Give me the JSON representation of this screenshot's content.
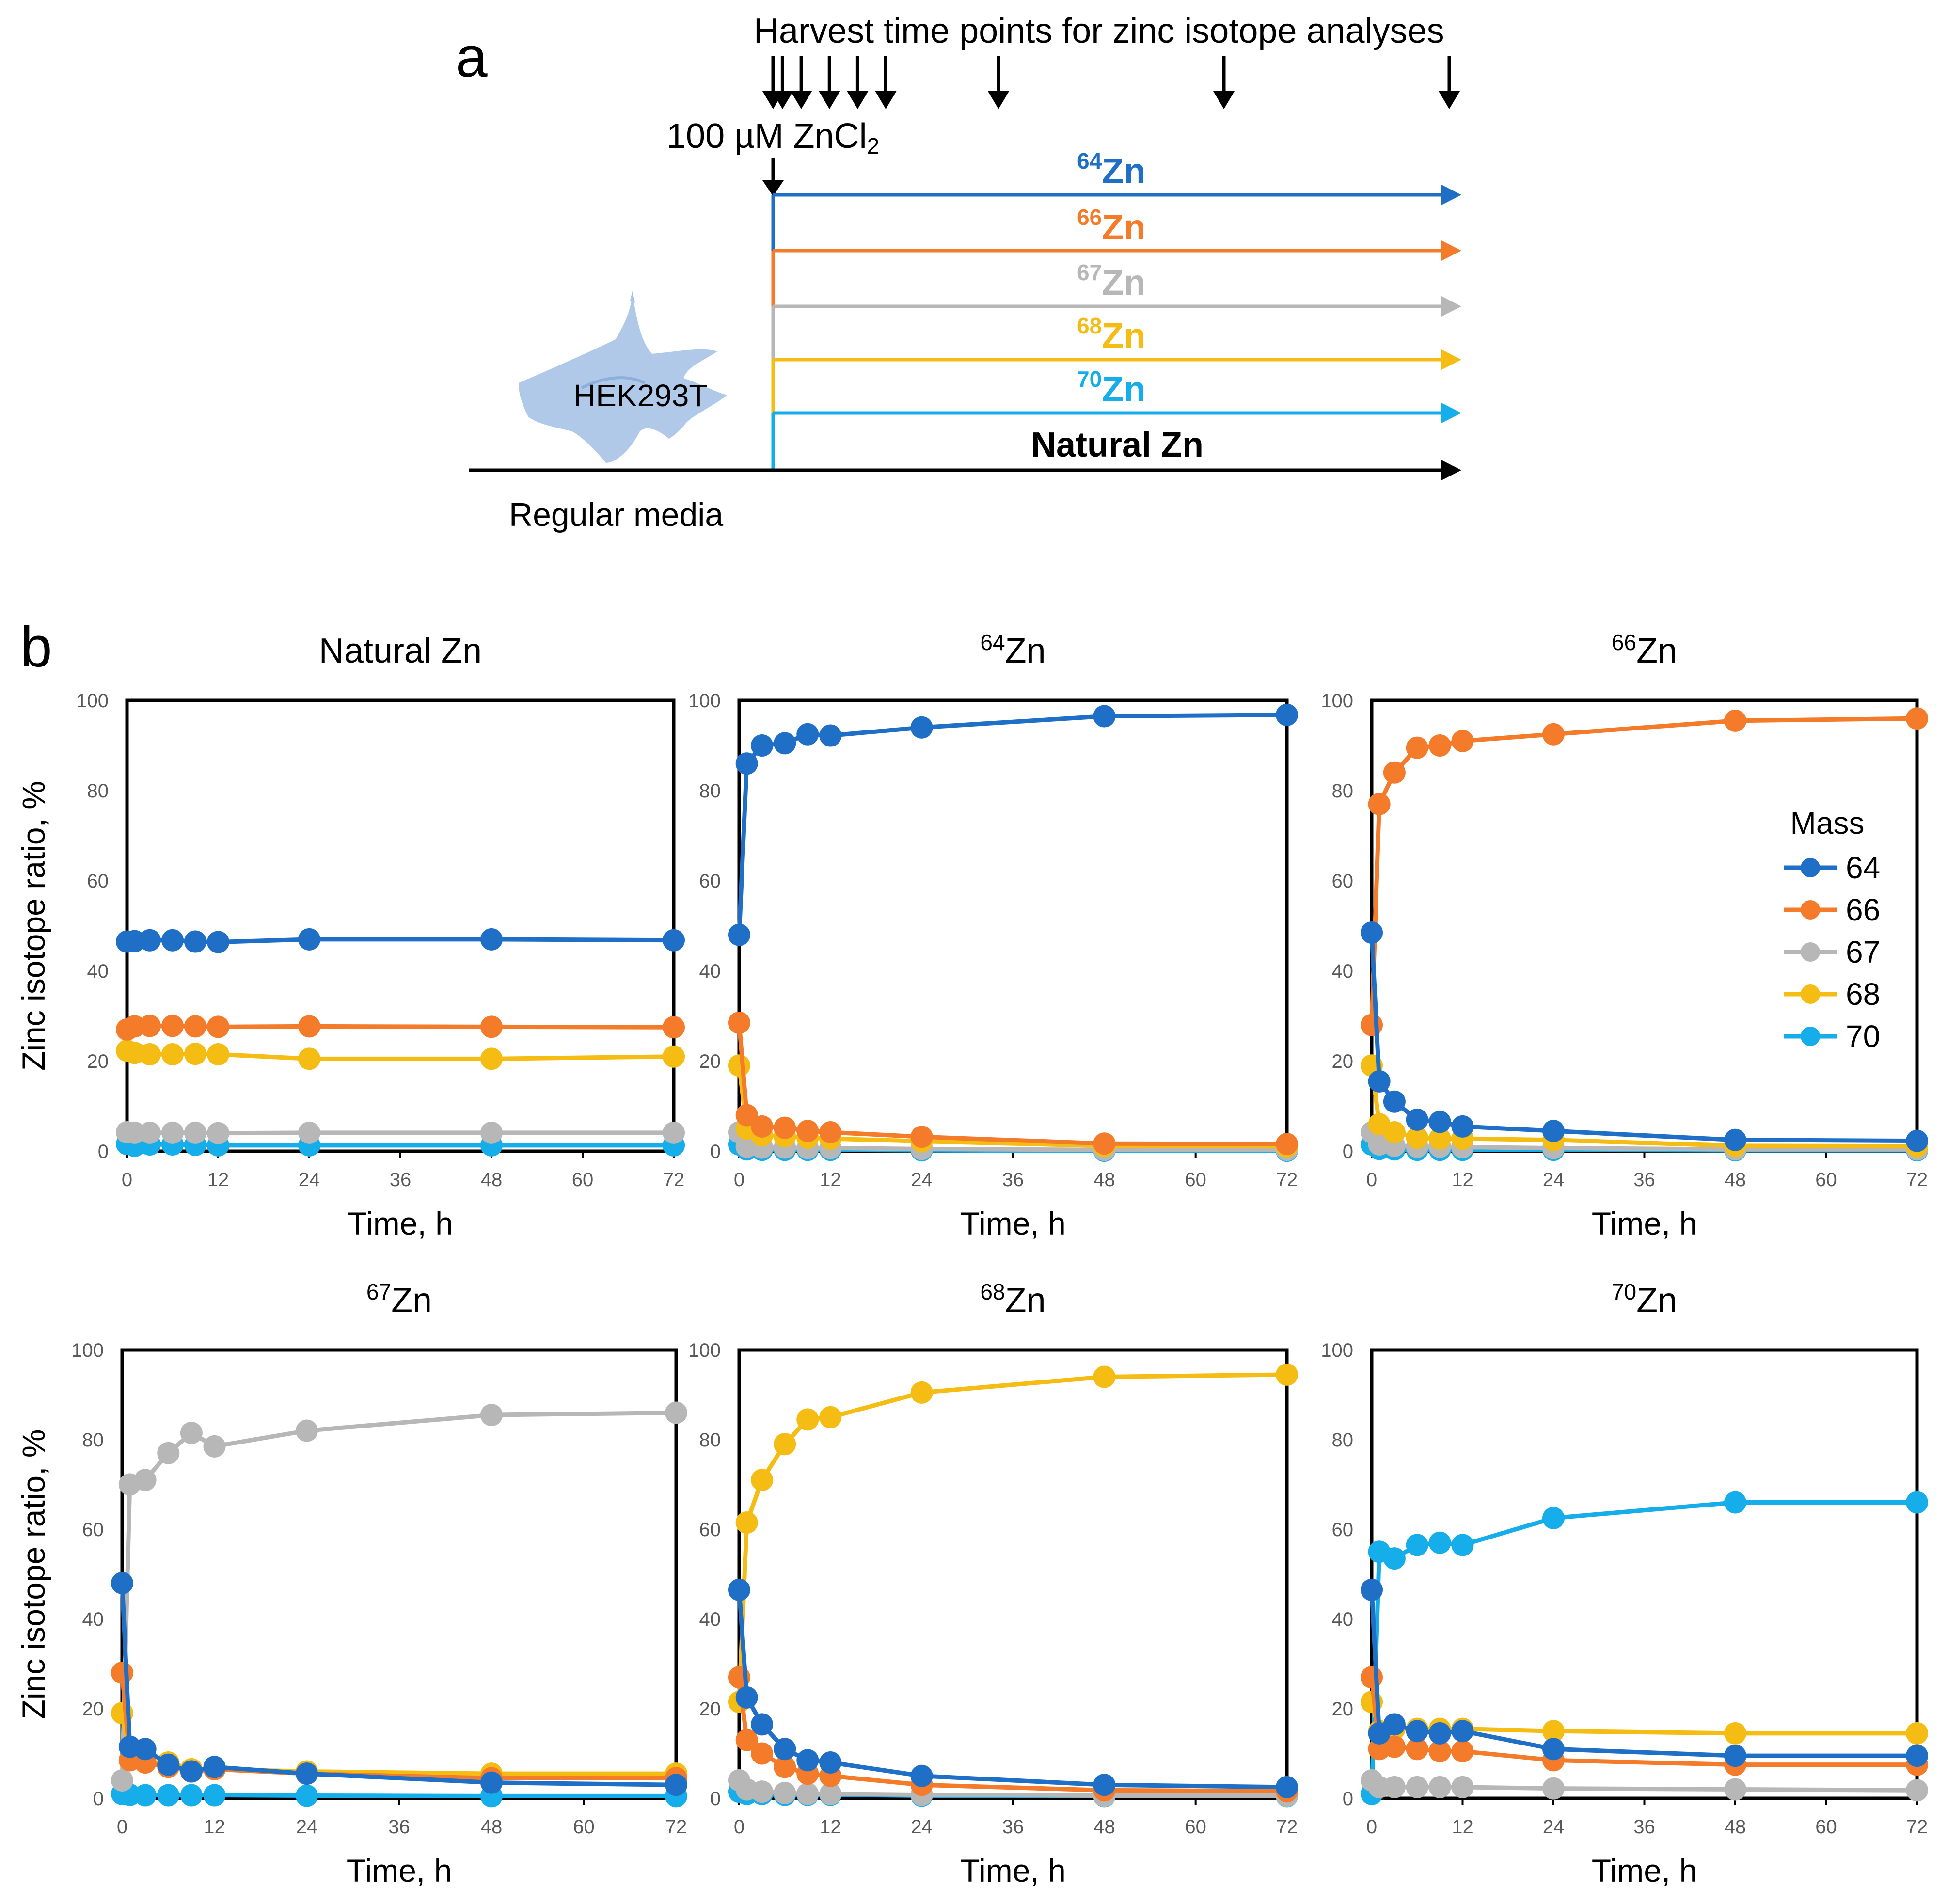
{
  "panel_a": {
    "letter": "a",
    "harvest_title": "Harvest time points for zinc isotope analyses",
    "treatment_label": "100 µM ZnCl",
    "treatment_sub": "2",
    "cell_label": "HEK293T",
    "media_label": "Regular media",
    "harvest_times_h": [
      0,
      1,
      3,
      6,
      9,
      12,
      24,
      48,
      72
    ],
    "arrows": [
      {
        "mass": "64",
        "element": "Zn",
        "color": "#1F6FC6"
      },
      {
        "mass": "66",
        "element": "Zn",
        "color": "#F47B2A"
      },
      {
        "mass": "67",
        "element": "Zn",
        "color": "#B7B7B7"
      },
      {
        "mass": "68",
        "element": "Zn",
        "color": "#F5BC14"
      },
      {
        "mass": "70",
        "element": "Zn",
        "color": "#16AEEA"
      }
    ],
    "natural_label": "Natural Zn",
    "natural_color": "#000000"
  },
  "panel_b": {
    "letter": "b",
    "legend": {
      "title": "Mass",
      "entries": [
        {
          "key": "64",
          "label": "64",
          "color": "#1F6FC6"
        },
        {
          "key": "66",
          "label": "66",
          "color": "#F47B2A"
        },
        {
          "key": "67",
          "label": "67",
          "color": "#B7B7B7"
        },
        {
          "key": "68",
          "label": "68",
          "color": "#F5BC14"
        },
        {
          "key": "70",
          "label": "70",
          "color": "#16AEEA"
        }
      ]
    }
  },
  "chart_data": [
    {
      "type": "line",
      "id": "natural",
      "title": "Natural Zn",
      "title_sup": "",
      "title_main": "Natural Zn",
      "xlabel": "Time, h",
      "ylabel": "Zinc isotope ratio, %",
      "xlim": [
        0,
        72
      ],
      "ylim": [
        0,
        100
      ],
      "xticks": [
        0,
        12,
        24,
        36,
        48,
        60,
        72
      ],
      "yticks": [
        0,
        20,
        40,
        60,
        80,
        100
      ],
      "x": [
        0,
        1,
        3,
        6,
        9,
        12,
        24,
        48,
        72
      ],
      "series": [
        {
          "name": "64",
          "values": [
            46.5,
            46.6,
            46.8,
            46.8,
            46.5,
            46.4,
            47.0,
            47.0,
            46.8
          ]
        },
        {
          "name": "66",
          "values": [
            27.0,
            27.7,
            27.8,
            27.8,
            27.7,
            27.6,
            27.7,
            27.6,
            27.5
          ]
        },
        {
          "name": "67",
          "values": [
            4.2,
            4.1,
            4.1,
            4.1,
            4.1,
            4.0,
            4.1,
            4.1,
            4.1
          ]
        },
        {
          "name": "68",
          "values": [
            22.3,
            21.8,
            21.5,
            21.5,
            21.6,
            21.5,
            20.5,
            20.5,
            21.0
          ]
        },
        {
          "name": "70",
          "values": [
            1.6,
            1.2,
            1.5,
            1.5,
            1.4,
            1.3,
            1.3,
            1.3,
            1.3
          ]
        }
      ]
    },
    {
      "type": "line",
      "id": "zn64",
      "title": "64Zn",
      "title_sup": "64",
      "title_main": "Zn",
      "xlabel": "Time, h",
      "ylabel": "Zinc isotope ratio, %",
      "xlim": [
        0,
        72
      ],
      "ylim": [
        0,
        100
      ],
      "xticks": [
        0,
        12,
        24,
        36,
        48,
        60,
        72
      ],
      "yticks": [
        0,
        20,
        40,
        60,
        80,
        100
      ],
      "x": [
        0,
        1,
        3,
        6,
        9,
        12,
        24,
        48,
        72
      ],
      "series": [
        {
          "name": "64",
          "values": [
            48.0,
            86.0,
            90.0,
            90.5,
            92.5,
            92.2,
            94.0,
            96.5,
            96.8
          ]
        },
        {
          "name": "66",
          "values": [
            28.5,
            8.0,
            5.5,
            5.2,
            4.5,
            4.2,
            3.2,
            1.7,
            1.6
          ]
        },
        {
          "name": "67",
          "values": [
            4.2,
            1.0,
            0.8,
            0.8,
            0.7,
            0.7,
            0.5,
            0.3,
            0.3
          ]
        },
        {
          "name": "68",
          "values": [
            19.0,
            5.0,
            3.5,
            3.3,
            3.0,
            2.8,
            2.2,
            1.2,
            1.1
          ]
        },
        {
          "name": "70",
          "values": [
            1.5,
            0.4,
            0.3,
            0.3,
            0.3,
            0.3,
            0.2,
            0.1,
            0.1
          ]
        }
      ]
    },
    {
      "type": "line",
      "id": "zn66",
      "title": "66Zn",
      "title_sup": "66",
      "title_main": "Zn",
      "xlabel": "Time, h",
      "ylabel": "Zinc isotope ratio, %",
      "xlim": [
        0,
        72
      ],
      "ylim": [
        0,
        100
      ],
      "xticks": [
        0,
        12,
        24,
        36,
        48,
        60,
        72
      ],
      "yticks": [
        0,
        20,
        40,
        60,
        80,
        100
      ],
      "x": [
        0,
        1,
        3,
        6,
        9,
        12,
        24,
        48,
        72
      ],
      "series": [
        {
          "name": "64",
          "values": [
            48.5,
            15.5,
            11.0,
            7.0,
            6.5,
            5.5,
            4.5,
            2.5,
            2.3
          ]
        },
        {
          "name": "66",
          "values": [
            28.0,
            77.0,
            84.0,
            89.5,
            90.0,
            91.0,
            92.5,
            95.5,
            96.0
          ]
        },
        {
          "name": "67",
          "values": [
            4.2,
            1.5,
            1.2,
            1.0,
            1.0,
            0.9,
            0.7,
            0.4,
            0.4
          ]
        },
        {
          "name": "68",
          "values": [
            19.0,
            6.0,
            4.2,
            3.0,
            2.8,
            2.8,
            2.5,
            1.2,
            1.1
          ]
        },
        {
          "name": "70",
          "values": [
            1.5,
            0.5,
            0.4,
            0.3,
            0.3,
            0.3,
            0.3,
            0.2,
            0.2
          ]
        }
      ]
    },
    {
      "type": "line",
      "id": "zn67",
      "title": "67Zn",
      "title_sup": "67",
      "title_main": "Zn",
      "xlabel": "Time, h",
      "ylabel": "Zinc isotope ratio, %",
      "xlim": [
        0,
        72
      ],
      "ylim": [
        0,
        100
      ],
      "xticks": [
        0,
        12,
        24,
        36,
        48,
        60,
        72
      ],
      "yticks": [
        0,
        20,
        40,
        60,
        80,
        100
      ],
      "x": [
        0,
        1,
        3,
        6,
        9,
        12,
        24,
        48,
        72
      ],
      "series": [
        {
          "name": "64",
          "values": [
            48.0,
            11.5,
            11.0,
            7.5,
            6.0,
            7.0,
            5.5,
            3.5,
            3.0
          ]
        },
        {
          "name": "66",
          "values": [
            28.0,
            8.5,
            8.0,
            7.0,
            6.0,
            6.5,
            5.5,
            4.5,
            4.5
          ]
        },
        {
          "name": "67",
          "values": [
            4.0,
            70.0,
            71.0,
            77.0,
            81.5,
            78.5,
            82.0,
            85.5,
            86.0
          ]
        },
        {
          "name": "68",
          "values": [
            19.0,
            8.5,
            8.0,
            8.0,
            6.5,
            6.5,
            6.0,
            5.5,
            5.5
          ]
        },
        {
          "name": "70",
          "values": [
            1.0,
            0.8,
            0.7,
            0.7,
            0.7,
            0.7,
            0.6,
            0.5,
            0.5
          ]
        }
      ]
    },
    {
      "type": "line",
      "id": "zn68",
      "title": "68Zn",
      "title_sup": "68",
      "title_main": "Zn",
      "xlabel": "Time, h",
      "ylabel": "Zinc isotope ratio, %",
      "xlim": [
        0,
        72
      ],
      "ylim": [
        0,
        100
      ],
      "xticks": [
        0,
        12,
        24,
        36,
        48,
        60,
        72
      ],
      "yticks": [
        0,
        20,
        40,
        60,
        80,
        100
      ],
      "x": [
        0,
        1,
        3,
        6,
        9,
        12,
        24,
        48,
        72
      ],
      "series": [
        {
          "name": "64",
          "values": [
            46.5,
            22.5,
            16.5,
            11.0,
            8.5,
            8.0,
            5.0,
            3.0,
            2.5
          ]
        },
        {
          "name": "66",
          "values": [
            27.0,
            13.0,
            10.0,
            7.0,
            5.5,
            5.0,
            3.0,
            1.8,
            1.6
          ]
        },
        {
          "name": "67",
          "values": [
            4.0,
            2.0,
            1.5,
            1.2,
            1.0,
            1.0,
            0.8,
            0.6,
            0.6
          ]
        },
        {
          "name": "68",
          "values": [
            21.5,
            61.5,
            71.0,
            79.0,
            84.5,
            85.0,
            90.5,
            94.0,
            94.5
          ]
        },
        {
          "name": "70",
          "values": [
            1.5,
            1.0,
            1.0,
            0.8,
            0.8,
            0.8,
            0.6,
            0.5,
            0.5
          ]
        }
      ]
    },
    {
      "type": "line",
      "id": "zn70",
      "title": "70Zn",
      "title_sup": "70",
      "title_main": "Zn",
      "xlabel": "Time, h",
      "ylabel": "Zinc isotope ratio, %",
      "xlim": [
        0,
        72
      ],
      "ylim": [
        0,
        100
      ],
      "xticks": [
        0,
        12,
        24,
        36,
        48,
        60,
        72
      ],
      "yticks": [
        0,
        20,
        40,
        60,
        80,
        100
      ],
      "x": [
        0,
        1,
        3,
        6,
        9,
        12,
        24,
        48,
        72
      ],
      "series": [
        {
          "name": "64",
          "values": [
            46.5,
            14.5,
            16.5,
            15.0,
            14.5,
            15.0,
            11.0,
            9.5,
            9.5
          ]
        },
        {
          "name": "66",
          "values": [
            27.0,
            11.0,
            11.5,
            11.0,
            10.5,
            10.5,
            8.5,
            7.5,
            7.5
          ]
        },
        {
          "name": "67",
          "values": [
            4.0,
            2.5,
            2.5,
            2.5,
            2.5,
            2.5,
            2.2,
            2.0,
            1.8
          ]
        },
        {
          "name": "68",
          "values": [
            21.5,
            15.0,
            15.5,
            15.5,
            15.5,
            15.5,
            15.0,
            14.5,
            14.5
          ]
        },
        {
          "name": "70",
          "values": [
            1.0,
            55.0,
            53.5,
            56.5,
            57.0,
            56.5,
            62.5,
            66.0,
            66.0
          ]
        }
      ]
    }
  ]
}
